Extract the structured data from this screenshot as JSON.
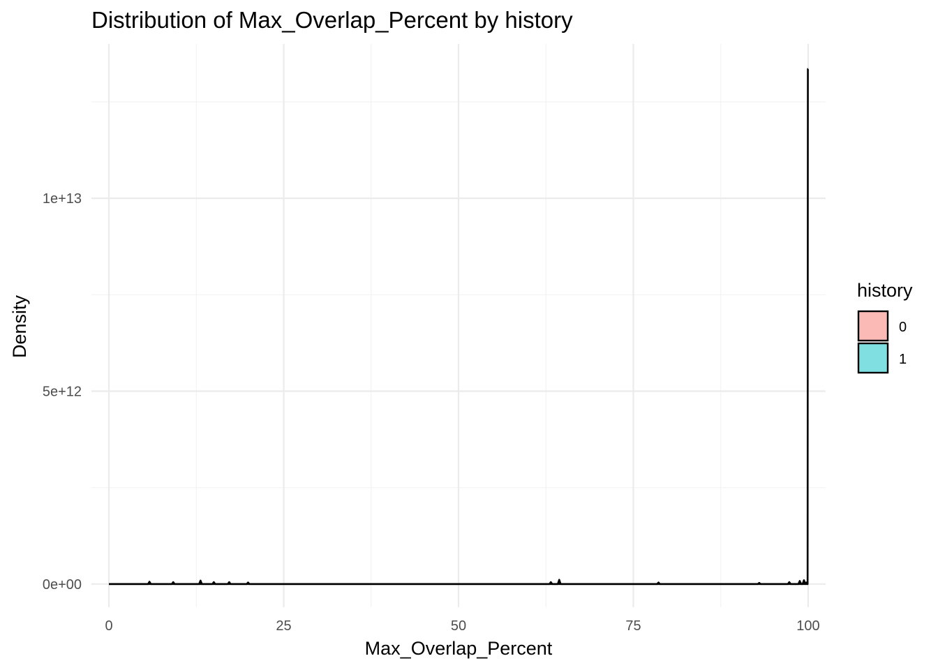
{
  "chart_data": {
    "type": "area",
    "title": "Distribution of Max_Overlap_Percent by history",
    "xlabel": "Max_Overlap_Percent",
    "ylabel": "Density",
    "xlim": [
      -2.5,
      102.5
    ],
    "ylim": [
      -600000000000.0,
      14000000000000.0
    ],
    "x_ticks": [
      0,
      25,
      50,
      75,
      100
    ],
    "x_tick_labels": [
      "0",
      "25",
      "50",
      "75",
      "100"
    ],
    "x_minor_ticks": [
      12.5,
      37.5,
      62.5,
      87.5
    ],
    "y_ticks": [
      0,
      5000000000000.0,
      10000000000000.0
    ],
    "y_tick_labels": [
      "0e+00",
      "5e+12",
      "1e+13"
    ],
    "y_minor_ticks": [
      2500000000000.0,
      7500000000000.0,
      12500000000000.0
    ],
    "grid": true,
    "legend": {
      "title": "history",
      "position": "right",
      "entries": [
        {
          "label": "0",
          "color": "#F8766D"
        },
        {
          "label": "1",
          "color": "#00BFC4"
        }
      ]
    },
    "series": [
      {
        "name": "0",
        "color": "#F8766D",
        "x": [
          0,
          5.6,
          5.8,
          6.0,
          9.0,
          9.2,
          9.4,
          12.9,
          13.1,
          13.3,
          14.8,
          15.0,
          15.2,
          17.0,
          17.2,
          17.4,
          19.7,
          19.9,
          20.1,
          63.0,
          63.2,
          63.4,
          64.2,
          64.4,
          64.6,
          78.4,
          78.6,
          78.8,
          92.8,
          93.0,
          93.2,
          97.1,
          97.3,
          97.5,
          98.6,
          98.8,
          99.0,
          99.2,
          99.4,
          99.6,
          99.75,
          99.85,
          99.92,
          99.96,
          100
        ],
        "y": [
          0,
          0,
          60000000000.0,
          0,
          0,
          50000000000.0,
          0,
          0,
          90000000000.0,
          0,
          0,
          50000000000.0,
          0,
          0,
          50000000000.0,
          0,
          0,
          40000000000.0,
          0,
          0,
          50000000000.0,
          0,
          0,
          110000000000.0,
          0,
          0,
          40000000000.0,
          0,
          0,
          30000000000.0,
          0,
          0,
          50000000000.0,
          0,
          0,
          80000000000.0,
          0,
          0,
          100000000000.0,
          0,
          40000000000.0,
          0,
          0,
          13350000000000.0,
          13350000000000.0
        ]
      },
      {
        "name": "1",
        "color": "#00BFC4",
        "x": [
          0,
          100
        ],
        "y": [
          0,
          0
        ]
      }
    ]
  }
}
